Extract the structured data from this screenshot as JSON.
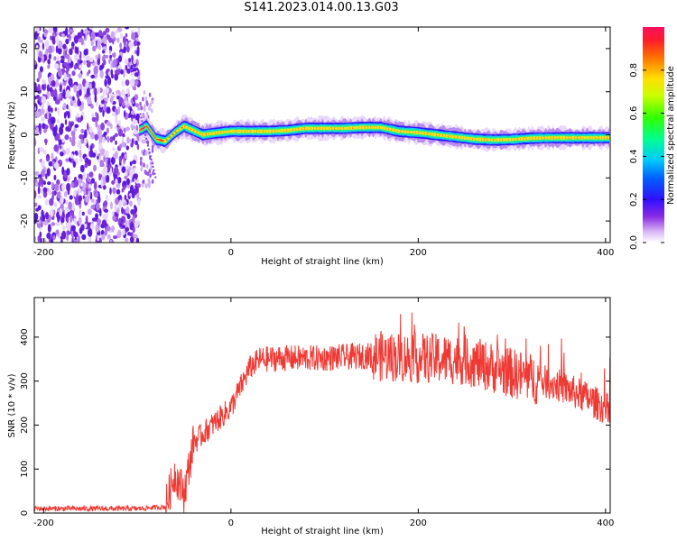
{
  "title": "S141.2023.014.00.13.G03",
  "chart_data": [
    {
      "type": "heatmap",
      "xlabel": "Height of straight line (km)",
      "ylabel": "Frequency (Hz)",
      "xlim": [
        -210,
        405
      ],
      "ylim": [
        -25,
        25
      ],
      "x_ticks": [
        "-200",
        "0",
        "200",
        "400"
      ],
      "y_ticks": [
        "-20",
        "-10",
        "0",
        "10",
        "20"
      ],
      "colorbar": {
        "label": "Normalized spectral amplitude",
        "range": [
          0,
          1
        ],
        "ticks": [
          "0.0",
          "0.2",
          "0.4",
          "0.6",
          "0.8"
        ]
      },
      "noise_region_x": [
        -210,
        -98
      ],
      "ridge": {
        "x": [
          -98,
          -90,
          -80,
          -70,
          -60,
          -50,
          -40,
          -30,
          -20,
          0,
          20,
          40,
          60,
          80,
          100,
          120,
          140,
          160,
          180,
          200,
          220,
          240,
          260,
          280,
          300,
          320,
          340,
          360,
          380,
          405
        ],
        "freq": [
          1,
          2,
          -1,
          -1.5,
          0.5,
          2,
          1,
          0,
          0.3,
          0.8,
          0.8,
          0.8,
          1,
          1.5,
          1.5,
          1.5,
          1.7,
          1.7,
          0.8,
          0.5,
          0,
          -0.5,
          -1,
          -1.2,
          -1.1,
          -0.8,
          -0.7,
          -0.7,
          -0.7,
          -0.7
        ]
      }
    },
    {
      "type": "line",
      "xlabel": "Height of straight line (km)",
      "ylabel": "SNR (10 * v/v)",
      "xlim": [
        -210,
        405
      ],
      "ylim": [
        0,
        490
      ],
      "x_ticks": [
        "-200",
        "0",
        "200",
        "400"
      ],
      "y_ticks": [
        "0",
        "100",
        "200",
        "300",
        "400"
      ],
      "color": "#ef3a34",
      "envelope": {
        "x": [
          -210,
          -100,
          -70,
          -60,
          -50,
          -40,
          -20,
          0,
          10,
          20,
          30,
          50,
          100,
          150,
          200,
          250,
          300,
          350,
          380,
          405
        ],
        "y": [
          10,
          10,
          14,
          90,
          45,
          160,
          200,
          240,
          285,
          330,
          348,
          352,
          352,
          358,
          352,
          348,
          318,
          290,
          262,
          232
        ]
      }
    }
  ]
}
